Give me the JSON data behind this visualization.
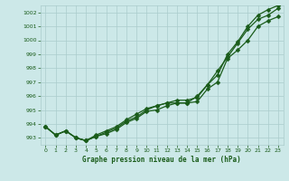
{
  "title": "Graphe pression niveau de la mer (hPa)",
  "background_color": "#cce8e8",
  "plot_bg_color": "#cce8e8",
  "grid_color": "#aacccc",
  "line_color": "#1a5c1a",
  "marker_color": "#1a5c1a",
  "xlim_min": -0.5,
  "xlim_max": 23.5,
  "ylim_min": 992.5,
  "ylim_max": 1002.5,
  "xticks": [
    0,
    1,
    2,
    3,
    4,
    5,
    6,
    7,
    8,
    9,
    10,
    11,
    12,
    13,
    14,
    15,
    16,
    17,
    18,
    19,
    20,
    21,
    22,
    23
  ],
  "yticks": [
    993,
    994,
    995,
    996,
    997,
    998,
    999,
    1000,
    1001,
    1002
  ],
  "line1": [
    993.8,
    993.2,
    993.5,
    993.0,
    992.8,
    993.1,
    993.3,
    993.6,
    994.1,
    994.4,
    994.9,
    995.0,
    995.3,
    995.5,
    995.5,
    995.6,
    996.5,
    997.0,
    998.7,
    999.3,
    1000.0,
    1001.0,
    1001.4,
    1001.7
  ],
  "line2": [
    993.8,
    993.2,
    993.5,
    993.0,
    992.8,
    993.1,
    993.4,
    993.7,
    994.2,
    994.5,
    995.0,
    995.3,
    995.5,
    995.5,
    995.5,
    996.0,
    996.8,
    997.8,
    998.8,
    999.8,
    1000.8,
    1001.5,
    1001.8,
    1002.3
  ],
  "line3": [
    993.8,
    993.2,
    993.5,
    993.0,
    992.8,
    993.2,
    993.5,
    993.8,
    994.3,
    994.7,
    995.1,
    995.3,
    995.5,
    995.7,
    995.7,
    995.9,
    996.8,
    997.5,
    999.0,
    999.9,
    1001.0,
    1001.8,
    1002.2,
    1002.5
  ]
}
